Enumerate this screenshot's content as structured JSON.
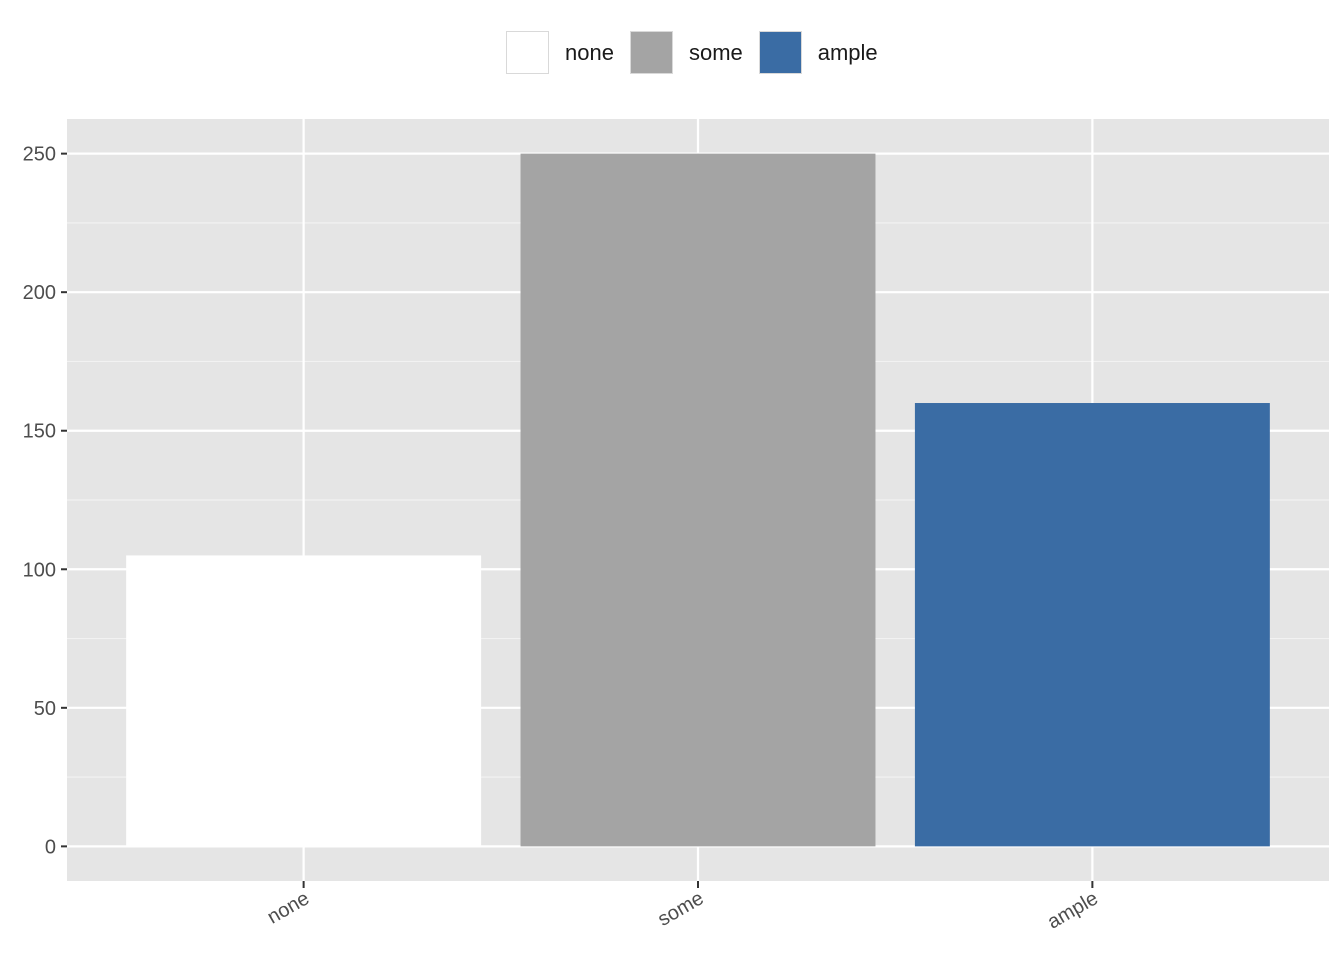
{
  "chart_data": {
    "type": "bar",
    "categories": [
      "none",
      "some",
      "ample"
    ],
    "values": [
      105,
      250,
      160
    ],
    "colors": [
      "#FFFFFF",
      "#A4A4A4",
      "#3A6CA4"
    ],
    "ylim": [
      -12.5,
      262.5
    ],
    "yticks": [
      0,
      50,
      100,
      150,
      200,
      250
    ],
    "xlabel": "",
    "ylabel": "",
    "title": "",
    "legend": {
      "position": "top",
      "entries": [
        "none",
        "some",
        "ample"
      ]
    },
    "grid": true,
    "panel_background": "#E5E5E5"
  }
}
